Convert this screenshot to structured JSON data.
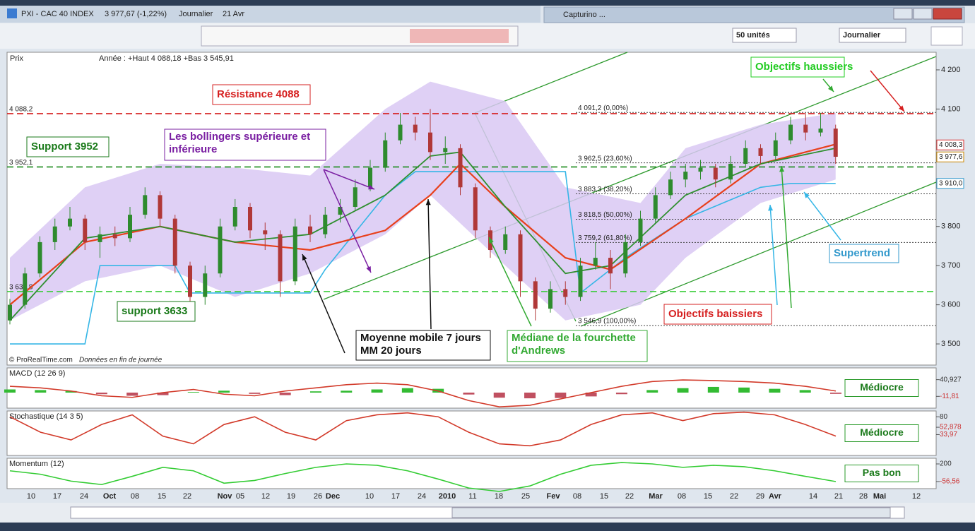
{
  "window": {
    "title": "PXI - CAC 40 INDEX",
    "quote": "3 977,67 (-1,22%)",
    "period": "Journalier",
    "date": "21 Avr",
    "other_window": "Capturino ..."
  },
  "toolbar": {
    "units": "50 unités",
    "interval": "Journalier"
  },
  "price_panel": {
    "type": "candlestick",
    "name": "Prix",
    "info": "Année : +Haut 4 088,18 +Bas 3 545,91",
    "footer": "© ProRealTime.com",
    "footer_note": "Données en fin de journée",
    "ylim": [
      3446,
      4245
    ],
    "yticks": [
      {
        "value": 4200,
        "label": "4 200"
      },
      {
        "value": 4100,
        "label": "4 100"
      },
      {
        "value": 3800,
        "label": "3 800"
      },
      {
        "value": 3700,
        "label": "3 700"
      },
      {
        "value": 3600,
        "label": "3 600"
      },
      {
        "value": 3500,
        "label": "3 500"
      }
    ],
    "up_color": "#2e8b2e",
    "down_color": "#b03838",
    "candles": [
      [
        3560,
        3615,
        3550,
        3600
      ],
      [
        3600,
        3695,
        3590,
        3680
      ],
      [
        3680,
        3775,
        3670,
        3760
      ],
      [
        3760,
        3820,
        3740,
        3800
      ],
      [
        3800,
        3850,
        3790,
        3820
      ],
      [
        3820,
        3830,
        3740,
        3760
      ],
      [
        3760,
        3800,
        3720,
        3780
      ],
      [
        3780,
        3800,
        3750,
        3770
      ],
      [
        3770,
        3850,
        3760,
        3830
      ],
      [
        3830,
        3900,
        3820,
        3880
      ],
      [
        3880,
        3890,
        3800,
        3820
      ],
      [
        3820,
        3830,
        3680,
        3700
      ],
      [
        3700,
        3710,
        3560,
        3620
      ],
      [
        3620,
        3700,
        3600,
        3680
      ],
      [
        3680,
        3820,
        3670,
        3800
      ],
      [
        3800,
        3870,
        3790,
        3850
      ],
      [
        3850,
        3860,
        3770,
        3790
      ],
      [
        3790,
        3810,
        3740,
        3780
      ],
      [
        3780,
        3790,
        3620,
        3660
      ],
      [
        3660,
        3820,
        3650,
        3800
      ],
      [
        3800,
        3830,
        3760,
        3780
      ],
      [
        3780,
        3850,
        3770,
        3830
      ],
      [
        3830,
        3870,
        3810,
        3850
      ],
      [
        3850,
        3920,
        3840,
        3900
      ],
      [
        3900,
        3970,
        3890,
        3950
      ],
      [
        3950,
        4040,
        3940,
        4020
      ],
      [
        4020,
        4090,
        4010,
        4060
      ],
      [
        4060,
        4080,
        4020,
        4040
      ],
      [
        4040,
        4100,
        3970,
        3990
      ],
      [
        3990,
        4030,
        3960,
        4000
      ],
      [
        4000,
        4010,
        3880,
        3900
      ],
      [
        3900,
        3910,
        3770,
        3790
      ],
      [
        3790,
        3800,
        3720,
        3740
      ],
      [
        3740,
        3800,
        3730,
        3780
      ],
      [
        3780,
        3790,
        3620,
        3660
      ],
      [
        3660,
        3670,
        3560,
        3590
      ],
      [
        3590,
        3660,
        3580,
        3640
      ],
      [
        3640,
        3660,
        3600,
        3620
      ],
      [
        3620,
        3720,
        3610,
        3700
      ],
      [
        3700,
        3760,
        3690,
        3720
      ],
      [
        3720,
        3740,
        3640,
        3680
      ],
      [
        3680,
        3780,
        3670,
        3760
      ],
      [
        3760,
        3840,
        3750,
        3820
      ],
      [
        3820,
        3900,
        3810,
        3880
      ],
      [
        3880,
        3940,
        3870,
        3920
      ],
      [
        3920,
        3960,
        3900,
        3940
      ],
      [
        3940,
        3970,
        3920,
        3950
      ],
      [
        3950,
        3960,
        3900,
        3920
      ],
      [
        3920,
        3980,
        3910,
        3960
      ],
      [
        3960,
        4020,
        3950,
        4000
      ],
      [
        4000,
        4010,
        3960,
        3980
      ],
      [
        3980,
        4040,
        3970,
        4020
      ],
      [
        4020,
        4080,
        4010,
        4060
      ],
      [
        4060,
        4090,
        4020,
        4040
      ],
      [
        4040,
        4090,
        4030,
        4050
      ],
      [
        4050,
        4060,
        3960,
        3978
      ]
    ],
    "bollinger": {
      "color": "#d9c8f3",
      "x": [
        0,
        5,
        10,
        15,
        20,
        25,
        28,
        33,
        37,
        42,
        45,
        50,
        55
      ],
      "upper": [
        3720,
        3900,
        3960,
        3950,
        3930,
        4100,
        4170,
        4120,
        3900,
        3860,
        4000,
        4060,
        4090
      ],
      "lower": [
        3560,
        3660,
        3700,
        3620,
        3680,
        3780,
        3880,
        3700,
        3560,
        3600,
        3720,
        3860,
        3920
      ]
    },
    "mm20": {
      "color": "#e8401c",
      "x": [
        0,
        5,
        10,
        15,
        20,
        25,
        28,
        30,
        33,
        37,
        40,
        45,
        50,
        55
      ],
      "values": [
        3600,
        3760,
        3800,
        3760,
        3740,
        3790,
        3880,
        3960,
        3850,
        3720,
        3690,
        3820,
        3960,
        4010
      ]
    },
    "mm7": {
      "color": "#2f8f2f",
      "x": [
        0,
        5,
        10,
        15,
        20,
        25,
        28,
        30,
        33,
        37,
        40,
        45,
        50,
        55
      ],
      "values": [
        3560,
        3770,
        3800,
        3760,
        3780,
        3880,
        3980,
        3990,
        3850,
        3680,
        3700,
        3880,
        3960,
        4000
      ]
    },
    "supertrend": {
      "color": "#35b6e6",
      "x": [
        0,
        5,
        6,
        11,
        12,
        20,
        21,
        25,
        27,
        33,
        37,
        38,
        41,
        45,
        50,
        52,
        55
      ],
      "values": [
        3500,
        3500,
        3700,
        3700,
        3630,
        3630,
        3690,
        3880,
        3940,
        3940,
        3940,
        3630,
        3720,
        3820,
        3900,
        3910,
        3910
      ]
    },
    "levels": [
      {
        "value": 4088.2,
        "label": "4 088,2",
        "color": "#d62020"
      },
      {
        "value": 3952.1,
        "label": "3 952,1",
        "color": "#1a8a1a"
      },
      {
        "value": 3633.8,
        "label": "3 633,8",
        "color": "#33cc33"
      }
    ],
    "fib": [
      {
        "value": 4091.2,
        "label": "4 091,2 (0,00%)"
      },
      {
        "value": 3962.5,
        "label": "3 962,5 (23,60%)"
      },
      {
        "value": 3883.3,
        "label": "3 883,3 (38,20%)"
      },
      {
        "value": 3818.5,
        "label": "3 818,5 (50,00%)"
      },
      {
        "value": 3759.2,
        "label": "3 759,2 (61,80%)"
      },
      {
        "value": 3546.9,
        "label": "3 546,9 (100,00%)"
      }
    ],
    "price_tags": [
      {
        "value": 4008.3,
        "label": "4 008,3",
        "color": "#d33"
      },
      {
        "value": 3977.6,
        "label": "3 977,6",
        "color": "#c80"
      },
      {
        "value": 3910.0,
        "label": "3 910,0",
        "color": "#39c"
      }
    ],
    "annotations": [
      {
        "lines": [
          "Résistance 4088"
        ],
        "color": "#d62020"
      },
      {
        "lines": [
          "Support 3952"
        ],
        "color": "#1a7a1a"
      },
      {
        "lines": [
          "Les bollingers supérieure et",
          "inférieure"
        ],
        "color": "#7a1fa2"
      },
      {
        "lines": [
          "support 3633"
        ],
        "color": "#1a7a1a"
      },
      {
        "lines": [
          "Moyenne mobile 7 jours",
          "MM 20 jours"
        ],
        "color": "#111111"
      },
      {
        "lines": [
          "Médiane de la fourchette",
          "d'Andrews"
        ],
        "color": "#33aa33"
      },
      {
        "lines": [
          "Objectifs baissiers"
        ],
        "color": "#d62020"
      },
      {
        "lines": [
          "Objectifs haussiers"
        ],
        "color": "#22cc22"
      },
      {
        "lines": [
          "Supertrend"
        ],
        "color": "#3399cc"
      }
    ]
  },
  "time_axis": [
    "10",
    "17",
    "24",
    "Oct",
    "08",
    "15",
    "22",
    "Nov",
    "05",
    "12",
    "19",
    "26",
    "Dec",
    "10",
    "17",
    "24",
    "2010",
    "11",
    "18",
    "25",
    "Fev",
    "08",
    "15",
    "22",
    "Mar",
    "08",
    "15",
    "22",
    "29",
    "Avr",
    "14",
    "21",
    "28",
    "Mai",
    "12"
  ],
  "macd": {
    "name": "MACD (12 26 9)",
    "ylim": [
      -49,
      78
    ],
    "histogram": [
      10,
      8,
      5,
      -5,
      -10,
      -8,
      2,
      6,
      -4,
      -8,
      4,
      6,
      10,
      14,
      12,
      -6,
      -16,
      -18,
      -17,
      -12,
      -5,
      8,
      14,
      18,
      16,
      12,
      8,
      -4
    ],
    "line": [
      20,
      15,
      5,
      -10,
      -15,
      0,
      10,
      -5,
      -10,
      5,
      15,
      25,
      30,
      25,
      5,
      -25,
      -45,
      -40,
      -20,
      0,
      20,
      35,
      40,
      38,
      35,
      30,
      20,
      5
    ],
    "tags": [
      {
        "value": 40.927,
        "label": "40,927"
      },
      {
        "value": -11.81,
        "label": "-11,81"
      }
    ],
    "verdict": "Médiocre"
  },
  "stochastic": {
    "name": "Stochastique (14 3 5)",
    "ylim": [
      -20,
      95
    ],
    "values": [
      80,
      40,
      20,
      60,
      85,
      30,
      10,
      60,
      80,
      40,
      20,
      70,
      85,
      90,
      80,
      40,
      10,
      5,
      20,
      60,
      85,
      90,
      70,
      88,
      92,
      85,
      60,
      30
    ],
    "tags": [
      80,
      {
        "value": 52.878,
        "label": "52,878"
      },
      {
        "value": 33.97,
        "label": "33,97"
      }
    ],
    "verdict": "Médiocre"
  },
  "momentum": {
    "name": "Momentum (12)",
    "ylim": [
      -159,
      282
    ],
    "values": [
      100,
      50,
      -50,
      -100,
      20,
      150,
      100,
      -80,
      -40,
      60,
      150,
      200,
      180,
      100,
      -20,
      -150,
      -200,
      -120,
      50,
      180,
      220,
      200,
      150,
      180,
      160,
      100,
      20,
      -56.56
    ],
    "tags": [
      200,
      {
        "value": -56.56,
        "label": "-56,56"
      }
    ],
    "verdict": "Pas bon"
  }
}
